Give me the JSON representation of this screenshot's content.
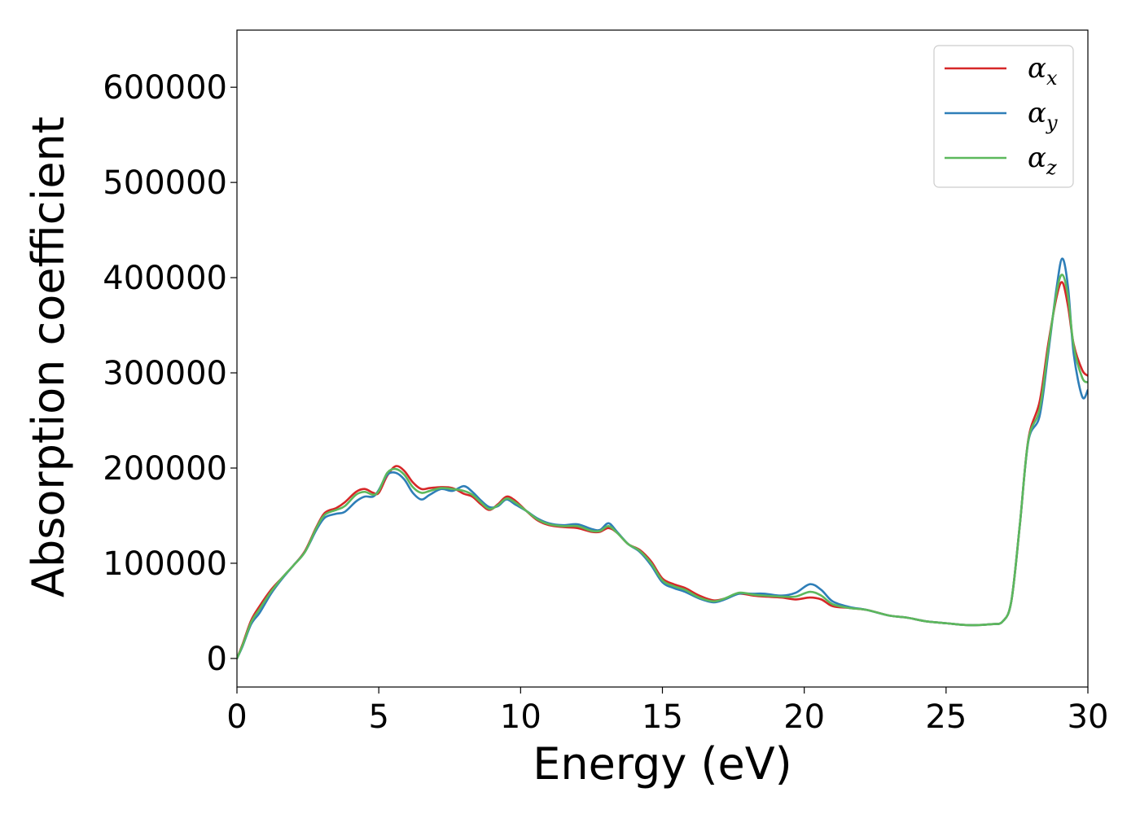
{
  "chart_data": {
    "type": "line",
    "title": "",
    "xlabel": "Energy (eV)",
    "ylabel": "Absorption coefficient",
    "xlim": [
      0,
      30
    ],
    "ylim": [
      -30000,
      660000
    ],
    "x_ticks": [
      0,
      5,
      10,
      15,
      20,
      25,
      30
    ],
    "x_tick_labels": [
      "0",
      "5",
      "10",
      "15",
      "20",
      "25",
      "30"
    ],
    "y_ticks": [
      0,
      100000,
      200000,
      300000,
      400000,
      500000,
      600000
    ],
    "y_tick_labels": [
      "0",
      "100000",
      "200000",
      "300000",
      "400000",
      "500000",
      "600000"
    ],
    "grid": false,
    "legend_position": "top-right",
    "series": [
      {
        "name": "α_x",
        "symbol": "α",
        "subscript": "x",
        "color": "#d62728",
        "points": [
          [
            0,
            0
          ],
          [
            0.2,
            15000
          ],
          [
            0.5,
            40000
          ],
          [
            0.8,
            55000
          ],
          [
            1.2,
            72000
          ],
          [
            1.6,
            85000
          ],
          [
            2,
            98000
          ],
          [
            2.4,
            113000
          ],
          [
            2.8,
            138000
          ],
          [
            3.1,
            153000
          ],
          [
            3.5,
            158000
          ],
          [
            3.8,
            164000
          ],
          [
            4.2,
            175000
          ],
          [
            4.5,
            178000
          ],
          [
            4.8,
            174000
          ],
          [
            5,
            174000
          ],
          [
            5.3,
            192000
          ],
          [
            5.6,
            202000
          ],
          [
            5.9,
            197000
          ],
          [
            6.2,
            185000
          ],
          [
            6.5,
            178000
          ],
          [
            6.8,
            179000
          ],
          [
            7.2,
            180000
          ],
          [
            7.6,
            179000
          ],
          [
            8,
            173000
          ],
          [
            8.3,
            170000
          ],
          [
            8.6,
            162000
          ],
          [
            8.9,
            156000
          ],
          [
            9.2,
            162000
          ],
          [
            9.5,
            170000
          ],
          [
            9.8,
            166000
          ],
          [
            10.2,
            155000
          ],
          [
            10.6,
            145000
          ],
          [
            11,
            140000
          ],
          [
            11.5,
            138000
          ],
          [
            12,
            137000
          ],
          [
            12.5,
            133000
          ],
          [
            12.8,
            133000
          ],
          [
            13.1,
            137000
          ],
          [
            13.4,
            132000
          ],
          [
            13.8,
            120000
          ],
          [
            14.2,
            114000
          ],
          [
            14.6,
            102000
          ],
          [
            15,
            84000
          ],
          [
            15.4,
            78000
          ],
          [
            15.8,
            74000
          ],
          [
            16.3,
            66000
          ],
          [
            16.8,
            61000
          ],
          [
            17.2,
            63000
          ],
          [
            17.7,
            68000
          ],
          [
            18.2,
            66000
          ],
          [
            18.6,
            65000
          ],
          [
            19.2,
            64000
          ],
          [
            19.7,
            62000
          ],
          [
            20.2,
            64000
          ],
          [
            20.6,
            62000
          ],
          [
            21,
            55000
          ],
          [
            21.6,
            53000
          ],
          [
            22.2,
            51000
          ],
          [
            23,
            45000
          ],
          [
            23.6,
            43000
          ],
          [
            24.3,
            39000
          ],
          [
            25,
            37000
          ],
          [
            25.8,
            35000
          ],
          [
            26.6,
            36000
          ],
          [
            27,
            39000
          ],
          [
            27.3,
            60000
          ],
          [
            27.6,
            140000
          ],
          [
            27.9,
            230000
          ],
          [
            28.3,
            270000
          ],
          [
            28.6,
            330000
          ],
          [
            28.9,
            380000
          ],
          [
            29.1,
            395000
          ],
          [
            29.3,
            370000
          ],
          [
            29.5,
            330000
          ],
          [
            29.8,
            303000
          ],
          [
            30,
            297000
          ]
        ]
      },
      {
        "name": "α_y",
        "symbol": "α",
        "subscript": "y",
        "color": "#2e7eb8",
        "points": [
          [
            0,
            0
          ],
          [
            0.2,
            13000
          ],
          [
            0.5,
            36000
          ],
          [
            0.8,
            48000
          ],
          [
            1.2,
            68000
          ],
          [
            1.6,
            84000
          ],
          [
            2,
            98000
          ],
          [
            2.4,
            112000
          ],
          [
            2.8,
            135000
          ],
          [
            3.1,
            148000
          ],
          [
            3.5,
            152000
          ],
          [
            3.8,
            154000
          ],
          [
            4.2,
            165000
          ],
          [
            4.5,
            170000
          ],
          [
            4.8,
            170000
          ],
          [
            5,
            177000
          ],
          [
            5.3,
            193000
          ],
          [
            5.6,
            195000
          ],
          [
            5.9,
            188000
          ],
          [
            6.2,
            174000
          ],
          [
            6.5,
            167000
          ],
          [
            6.8,
            172000
          ],
          [
            7.2,
            178000
          ],
          [
            7.6,
            176000
          ],
          [
            8,
            181000
          ],
          [
            8.3,
            175000
          ],
          [
            8.6,
            166000
          ],
          [
            8.9,
            159000
          ],
          [
            9.2,
            160000
          ],
          [
            9.5,
            167000
          ],
          [
            9.8,
            162000
          ],
          [
            10.2,
            155000
          ],
          [
            10.6,
            147000
          ],
          [
            11,
            142000
          ],
          [
            11.5,
            140000
          ],
          [
            12,
            141000
          ],
          [
            12.5,
            136000
          ],
          [
            12.8,
            135000
          ],
          [
            13.1,
            142000
          ],
          [
            13.4,
            133000
          ],
          [
            13.8,
            120000
          ],
          [
            14.2,
            112000
          ],
          [
            14.6,
            98000
          ],
          [
            15,
            80000
          ],
          [
            15.4,
            74000
          ],
          [
            15.8,
            70000
          ],
          [
            16.3,
            63000
          ],
          [
            16.8,
            59000
          ],
          [
            17.2,
            62000
          ],
          [
            17.7,
            68000
          ],
          [
            18.2,
            68000
          ],
          [
            18.6,
            68000
          ],
          [
            19.2,
            66000
          ],
          [
            19.7,
            69000
          ],
          [
            20.2,
            78000
          ],
          [
            20.6,
            72000
          ],
          [
            21,
            60000
          ],
          [
            21.6,
            54000
          ],
          [
            22.2,
            51000
          ],
          [
            23,
            45000
          ],
          [
            23.6,
            43000
          ],
          [
            24.3,
            39000
          ],
          [
            25,
            37000
          ],
          [
            25.8,
            35000
          ],
          [
            26.6,
            36000
          ],
          [
            27,
            39000
          ],
          [
            27.3,
            60000
          ],
          [
            27.6,
            140000
          ],
          [
            27.9,
            228000
          ],
          [
            28.3,
            255000
          ],
          [
            28.6,
            320000
          ],
          [
            28.9,
            390000
          ],
          [
            29.1,
            420000
          ],
          [
            29.3,
            390000
          ],
          [
            29.5,
            320000
          ],
          [
            29.8,
            275000
          ],
          [
            30,
            282000
          ]
        ]
      },
      {
        "name": "α_z",
        "symbol": "α",
        "subscript": "z",
        "color": "#5cb85c",
        "points": [
          [
            0,
            0
          ],
          [
            0.2,
            14000
          ],
          [
            0.5,
            38000
          ],
          [
            0.8,
            52000
          ],
          [
            1.2,
            70000
          ],
          [
            1.6,
            85000
          ],
          [
            2,
            98000
          ],
          [
            2.4,
            112000
          ],
          [
            2.8,
            137000
          ],
          [
            3.1,
            151000
          ],
          [
            3.5,
            156000
          ],
          [
            3.8,
            160000
          ],
          [
            4.2,
            172000
          ],
          [
            4.5,
            175000
          ],
          [
            4.8,
            172000
          ],
          [
            5,
            176000
          ],
          [
            5.3,
            195000
          ],
          [
            5.6,
            199000
          ],
          [
            5.9,
            193000
          ],
          [
            6.2,
            180000
          ],
          [
            6.5,
            174000
          ],
          [
            6.8,
            176000
          ],
          [
            7.2,
            179000
          ],
          [
            7.6,
            178000
          ],
          [
            8,
            176000
          ],
          [
            8.3,
            172000
          ],
          [
            8.6,
            164000
          ],
          [
            8.9,
            157000
          ],
          [
            9.2,
            161000
          ],
          [
            9.5,
            168000
          ],
          [
            9.8,
            164000
          ],
          [
            10.2,
            155000
          ],
          [
            10.6,
            146000
          ],
          [
            11,
            141000
          ],
          [
            11.5,
            139000
          ],
          [
            12,
            139000
          ],
          [
            12.5,
            134000
          ],
          [
            12.8,
            134000
          ],
          [
            13.1,
            139000
          ],
          [
            13.4,
            132000
          ],
          [
            13.8,
            120000
          ],
          [
            14.2,
            113000
          ],
          [
            14.6,
            100000
          ],
          [
            15,
            82000
          ],
          [
            15.4,
            76000
          ],
          [
            15.8,
            72000
          ],
          [
            16.3,
            64000
          ],
          [
            16.8,
            60000
          ],
          [
            17.2,
            63000
          ],
          [
            17.7,
            69000
          ],
          [
            18.2,
            67000
          ],
          [
            18.6,
            66000
          ],
          [
            19.2,
            65000
          ],
          [
            19.7,
            65000
          ],
          [
            20.2,
            70000
          ],
          [
            20.6,
            66000
          ],
          [
            21,
            57000
          ],
          [
            21.6,
            53000
          ],
          [
            22.2,
            51000
          ],
          [
            23,
            45000
          ],
          [
            23.6,
            43000
          ],
          [
            24.3,
            39000
          ],
          [
            25,
            37000
          ],
          [
            25.8,
            35000
          ],
          [
            26.6,
            36000
          ],
          [
            27,
            39000
          ],
          [
            27.3,
            60000
          ],
          [
            27.6,
            140000
          ],
          [
            27.9,
            229000
          ],
          [
            28.3,
            262000
          ],
          [
            28.6,
            325000
          ],
          [
            28.9,
            385000
          ],
          [
            29.1,
            403000
          ],
          [
            29.3,
            380000
          ],
          [
            29.5,
            328000
          ],
          [
            29.8,
            295000
          ],
          [
            30,
            290000
          ]
        ]
      }
    ]
  }
}
